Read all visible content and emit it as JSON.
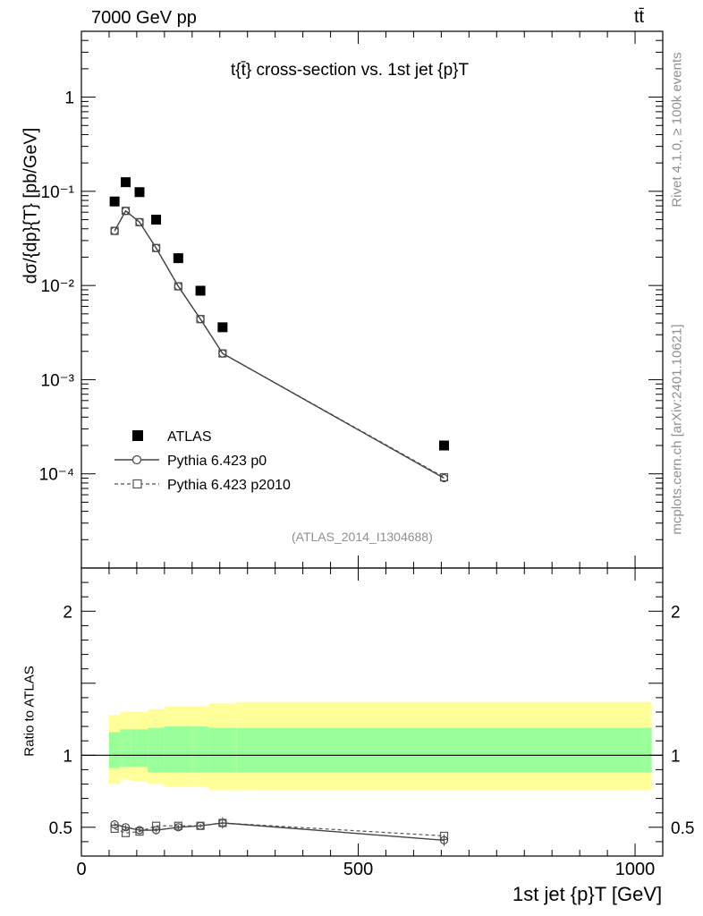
{
  "header": {
    "energy": "7000 GeV pp",
    "process": "tt̄"
  },
  "side": {
    "rivet": "Rivet 4.1.0, ≥ 100k events",
    "site": "mcplots.cern.ch [arXiv:2401.10621]"
  },
  "chart_data": {
    "type": "scatter",
    "title": "t{t̄} cross-section vs. 1st jet {p}T",
    "analysis": "(ATLAS_2014_I1304688)",
    "xlabel": "1st jet {p}T [GeV]",
    "ylabel": "dσ/{dp}{T} [pb/GeV]",
    "ratio_ylabel": "Ratio to ATLAS",
    "xlim": [
      0,
      1050
    ],
    "ylim": [
      1e-05,
      5
    ],
    "ratio_ylim": [
      0.3,
      2.3
    ],
    "x_ticks": [
      "0",
      "500",
      "1000"
    ],
    "y_ticks": [
      "1",
      "10⁻¹",
      "10⁻²",
      "10⁻³",
      "10⁻⁴"
    ],
    "ratio_ticks": [
      "0.5",
      "1",
      "2"
    ],
    "bins": [
      [
        50,
        70
      ],
      [
        70,
        90
      ],
      [
        90,
        120
      ],
      [
        120,
        150
      ],
      [
        150,
        200
      ],
      [
        200,
        230
      ],
      [
        230,
        280
      ],
      [
        280,
        1030
      ]
    ],
    "x": [
      60,
      80,
      105,
      135,
      175,
      215,
      255,
      655
    ],
    "series": [
      {
        "name": "ATLAS",
        "values": [
          0.078,
          0.125,
          0.098,
          0.05,
          0.0195,
          0.0088,
          0.0036,
          0.0002
        ]
      },
      {
        "name": "Pythia 6.423 p0",
        "values": [
          0.038,
          0.062,
          0.047,
          0.025,
          0.0098,
          0.0044,
          0.0019,
          9e-05
        ],
        "ratio": [
          0.52,
          0.5,
          0.48,
          0.48,
          0.5,
          0.51,
          0.53,
          0.41
        ]
      },
      {
        "name": "Pythia 6.423 p2010",
        "values": [
          0.038,
          0.062,
          0.047,
          0.025,
          0.0098,
          0.0044,
          0.0019,
          9.2e-05
        ],
        "ratio": [
          0.49,
          0.46,
          0.47,
          0.51,
          0.51,
          0.51,
          0.53,
          0.44
        ]
      }
    ],
    "uncertainty": {
      "stat_band": [
        [
          0.91,
          1.16
        ],
        [
          0.92,
          1.18
        ],
        [
          0.92,
          1.18
        ],
        [
          0.88,
          1.19
        ],
        [
          0.88,
          1.2
        ],
        [
          0.88,
          1.2
        ],
        [
          0.88,
          1.19
        ],
        [
          0.88,
          1.19
        ]
      ],
      "total_band": [
        [
          0.8,
          1.28
        ],
        [
          0.83,
          1.3
        ],
        [
          0.82,
          1.3
        ],
        [
          0.8,
          1.32
        ],
        [
          0.78,
          1.34
        ],
        [
          0.78,
          1.34
        ],
        [
          0.76,
          1.36
        ],
        [
          0.76,
          1.37
        ]
      ],
      "colors": {
        "stat": "#99ff99",
        "total": "#ffff99"
      }
    }
  }
}
